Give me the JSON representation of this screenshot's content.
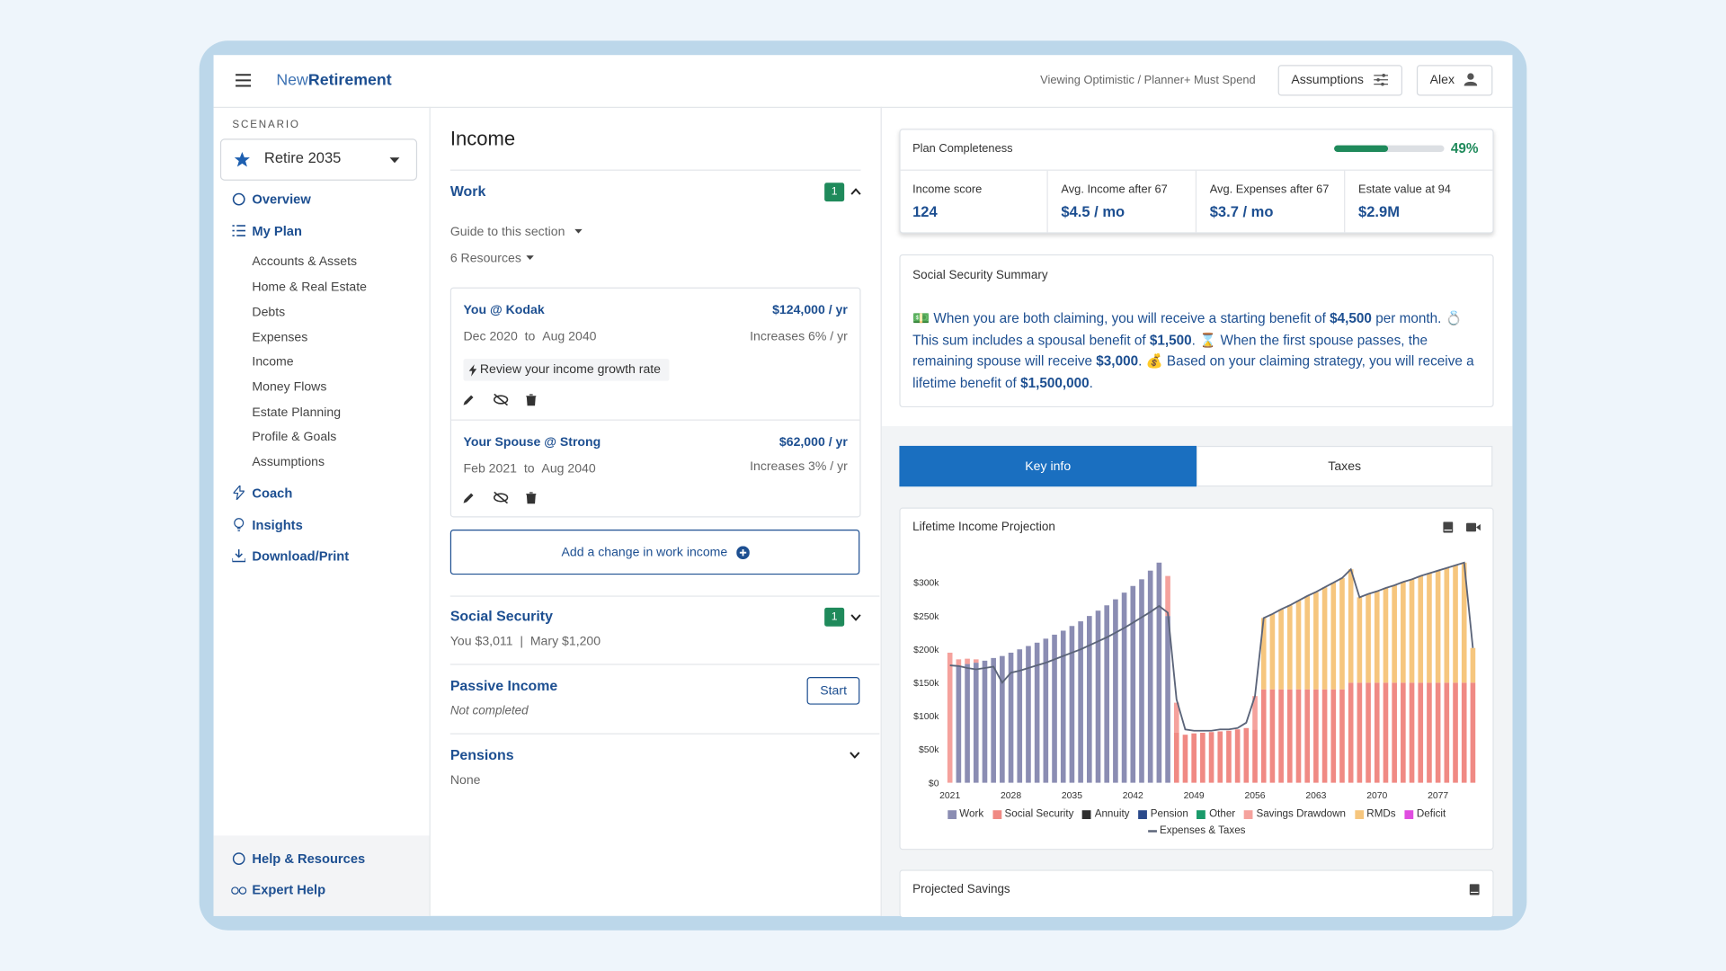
{
  "header": {
    "logo_light": "New",
    "logo_bold": "Retirement",
    "viewing": "Viewing Optimistic / Planner+ Must Spend",
    "assumptions": "Assumptions",
    "user": "Alex"
  },
  "sidebar": {
    "scenario_label": "SCENARIO",
    "scenario": "Retire 2035",
    "nav": [
      "Overview",
      "My Plan"
    ],
    "plan_items": [
      "Accounts & Assets",
      "Home & Real Estate",
      "Debts",
      "Expenses",
      "Income",
      "Money Flows",
      "Estate Planning",
      "Profile & Goals",
      "Assumptions"
    ],
    "nav2": [
      "Coach",
      "Insights",
      "Download/Print"
    ],
    "footer": [
      "Help & Resources",
      "Expert Help"
    ]
  },
  "income": {
    "title": "Income",
    "work": {
      "title": "Work",
      "count": "1",
      "guide": "Guide to this section",
      "resources": "6 Resources",
      "jobs": [
        {
          "name": "You @ Kodak",
          "amount": "$124,000 / yr",
          "start": "Dec 2020",
          "to": "to",
          "end": "Aug 2040",
          "growth": "Increases 6% / yr",
          "tip": "Review your income growth rate"
        },
        {
          "name": "Your Spouse @ Strong",
          "amount": "$62,000 / yr",
          "start": "Feb 2021",
          "to": "to",
          "end": "Aug 2040",
          "growth": "Increases 3% / yr"
        }
      ],
      "add": "Add a change in work income"
    },
    "social_security": {
      "title": "Social Security",
      "count": "1",
      "detail": "You $3,011  |  Mary $1,200"
    },
    "passive": {
      "title": "Passive Income",
      "action": "Start",
      "status": "Not completed"
    },
    "pensions": {
      "title": "Pensions",
      "status": "None"
    }
  },
  "summary": {
    "completeness": {
      "label": "Plan Completeness",
      "value": 49,
      "value_label": "49%"
    },
    "metrics": [
      {
        "label": "Income score",
        "value": "124"
      },
      {
        "label": "Avg. Income after 67",
        "value": "$4.5 / mo"
      },
      {
        "label": "Avg. Expenses after 67",
        "value": "$3.7 / mo"
      },
      {
        "label": "Estate value at 94",
        "value": "$2.9M"
      }
    ]
  },
  "social_security_summary": {
    "title": "Social Security Summary",
    "parts": [
      "💵 When you are both claiming, you will receive a starting benefit of ",
      "$4,500",
      " per month. 💍 This sum includes a spousal benefit of ",
      "$1,500",
      ". ⌛ When the first spouse passes, the remaining spouse will receive ",
      "$3,000",
      ". 💰 Based on your claiming strategy, you will receive a lifetime benefit of ",
      "$1,500,000",
      "."
    ]
  },
  "tabs": [
    "Key info",
    "Taxes"
  ],
  "chart_data": {
    "type": "bar",
    "stacked": true,
    "title": "Lifetime Income Projection",
    "grid": false,
    "x": [
      2021,
      2022,
      2023,
      2024,
      2025,
      2026,
      2027,
      2028,
      2029,
      2030,
      2031,
      2032,
      2033,
      2034,
      2035,
      2036,
      2037,
      2038,
      2039,
      2040,
      2041,
      2042,
      2043,
      2044,
      2045,
      2046,
      2047,
      2048,
      2049,
      2050,
      2051,
      2052,
      2053,
      2054,
      2055,
      2056,
      2057,
      2058,
      2059,
      2060,
      2061,
      2062,
      2063,
      2064,
      2065,
      2066,
      2067,
      2068,
      2069,
      2070,
      2071,
      2072,
      2073,
      2074,
      2075,
      2076,
      2077,
      2078,
      2079,
      2080,
      2081
    ],
    "xlim": [
      2020.5,
      2081.5
    ],
    "xticks": [
      2021,
      2028,
      2035,
      2042,
      2049,
      2056,
      2063,
      2070,
      2077
    ],
    "ylim": [
      0,
      340000
    ],
    "yticks": [
      {
        "value": 0,
        "label": "$0"
      },
      {
        "value": 50000,
        "label": "$50k"
      },
      {
        "value": 100000,
        "label": "$100k"
      },
      {
        "value": 150000,
        "label": "$150k"
      },
      {
        "value": 200000,
        "label": "$200k"
      },
      {
        "value": 250000,
        "label": "$250k"
      },
      {
        "value": 300000,
        "label": "$300k"
      }
    ],
    "series": [
      {
        "name": "Work",
        "color": "#8b8db3",
        "values": [
          0,
          175000,
          178000,
          180000,
          183000,
          187000,
          190000,
          195000,
          200000,
          205000,
          210000,
          216000,
          222000,
          228000,
          235000,
          242000,
          250000,
          258000,
          266000,
          275000,
          285000,
          295000,
          305000,
          318000,
          330000,
          250000,
          0,
          0,
          0,
          0,
          0,
          0,
          0,
          0,
          0,
          0,
          0,
          0,
          0,
          0,
          0,
          0,
          0,
          0,
          0,
          0,
          0,
          0,
          0,
          0,
          0,
          0,
          0,
          0,
          0,
          0,
          0,
          0,
          0,
          0,
          0
        ]
      },
      {
        "name": "Social Security",
        "color": "#f08a84",
        "values": [
          0,
          0,
          0,
          0,
          0,
          0,
          0,
          0,
          0,
          0,
          0,
          0,
          0,
          0,
          0,
          0,
          0,
          0,
          0,
          0,
          0,
          0,
          0,
          0,
          0,
          0,
          75000,
          72000,
          74000,
          75000,
          76000,
          77000,
          78000,
          80000,
          82000,
          80000,
          140000,
          140000,
          140000,
          140000,
          140000,
          140000,
          140000,
          140000,
          140000,
          140000,
          150000,
          150000,
          150000,
          150000,
          150000,
          150000,
          150000,
          150000,
          150000,
          150000,
          150000,
          150000,
          150000,
          150000,
          150000
        ]
      },
      {
        "name": "Annuity",
        "color": "#2e2e2e",
        "values": [
          0,
          0,
          0,
          0,
          0,
          0,
          0,
          0,
          0,
          0,
          0,
          0,
          0,
          0,
          0,
          0,
          0,
          0,
          0,
          0,
          0,
          0,
          0,
          0,
          0,
          0,
          0,
          0,
          0,
          0,
          0,
          0,
          0,
          0,
          0,
          0,
          0,
          0,
          0,
          0,
          0,
          0,
          0,
          0,
          0,
          0,
          0,
          0,
          0,
          0,
          0,
          0,
          0,
          0,
          0,
          0,
          0,
          0,
          0,
          0,
          0
        ]
      },
      {
        "name": "Pension",
        "color": "#2b4a8b",
        "values": [
          0,
          0,
          0,
          0,
          0,
          0,
          0,
          0,
          0,
          0,
          0,
          0,
          0,
          0,
          0,
          0,
          0,
          0,
          0,
          0,
          0,
          0,
          0,
          0,
          0,
          0,
          0,
          0,
          0,
          0,
          0,
          0,
          0,
          0,
          0,
          0,
          0,
          0,
          0,
          0,
          0,
          0,
          0,
          0,
          0,
          0,
          0,
          0,
          0,
          0,
          0,
          0,
          0,
          0,
          0,
          0,
          0,
          0,
          0,
          0,
          0
        ]
      },
      {
        "name": "Other",
        "color": "#1a9a6a",
        "values": [
          0,
          0,
          0,
          0,
          0,
          0,
          0,
          0,
          0,
          0,
          0,
          0,
          0,
          0,
          0,
          0,
          0,
          0,
          0,
          0,
          0,
          0,
          0,
          0,
          0,
          0,
          0,
          0,
          0,
          0,
          0,
          0,
          0,
          0,
          0,
          0,
          0,
          0,
          0,
          0,
          0,
          0,
          0,
          0,
          0,
          0,
          0,
          0,
          0,
          0,
          0,
          0,
          0,
          0,
          0,
          0,
          0,
          0,
          0,
          0,
          0
        ]
      },
      {
        "name": "Savings Drawdown",
        "color": "#f5a29d",
        "values": [
          195000,
          10000,
          8000,
          5000,
          0,
          0,
          0,
          0,
          0,
          0,
          0,
          0,
          0,
          0,
          0,
          0,
          0,
          0,
          0,
          0,
          0,
          0,
          0,
          0,
          0,
          60000,
          45000,
          0,
          0,
          0,
          0,
          0,
          0,
          0,
          0,
          50000,
          0,
          0,
          0,
          0,
          0,
          0,
          0,
          0,
          0,
          0,
          0,
          0,
          0,
          0,
          0,
          0,
          0,
          0,
          0,
          0,
          0,
          0,
          0,
          0,
          0
        ]
      },
      {
        "name": "RMDs",
        "color": "#f6c67e",
        "values": [
          0,
          0,
          0,
          0,
          0,
          0,
          0,
          0,
          0,
          0,
          0,
          0,
          0,
          0,
          0,
          0,
          0,
          0,
          0,
          0,
          0,
          0,
          0,
          0,
          0,
          0,
          0,
          0,
          0,
          0,
          0,
          0,
          0,
          0,
          0,
          0,
          107000,
          113000,
          120000,
          126000,
          133000,
          140000,
          146000,
          153000,
          160000,
          167000,
          170000,
          128000,
          133000,
          137000,
          142000,
          146000,
          151000,
          155000,
          160000,
          164000,
          168000,
          172000,
          176000,
          180000,
          52000
        ]
      },
      {
        "name": "Deficit",
        "color": "#e04de0",
        "values": [
          0,
          0,
          0,
          0,
          0,
          0,
          0,
          0,
          0,
          0,
          0,
          0,
          0,
          0,
          0,
          0,
          0,
          0,
          0,
          0,
          0,
          0,
          0,
          0,
          0,
          0,
          0,
          0,
          0,
          0,
          0,
          0,
          0,
          0,
          0,
          0,
          0,
          0,
          0,
          0,
          0,
          0,
          0,
          0,
          0,
          0,
          0,
          0,
          0,
          0,
          0,
          0,
          0,
          0,
          0,
          0,
          0,
          0,
          0,
          0,
          0
        ]
      },
      {
        "name": "Expenses & Taxes",
        "type": "line",
        "color": "#5b6479",
        "values": [
          176000,
          175000,
          172000,
          170000,
          172000,
          174000,
          150000,
          165000,
          168000,
          172000,
          176000,
          180000,
          185000,
          190000,
          195000,
          200000,
          206000,
          212000,
          218000,
          225000,
          232000,
          240000,
          248000,
          256000,
          265000,
          255000,
          125000,
          80000,
          78000,
          78000,
          78000,
          80000,
          80000,
          82000,
          90000,
          130000,
          247000,
          253000,
          260000,
          266000,
          273000,
          280000,
          286000,
          293000,
          300000,
          307000,
          320000,
          278000,
          283000,
          287000,
          292000,
          296000,
          301000,
          305000,
          310000,
          314000,
          318000,
          322000,
          326000,
          330000,
          202000
        ]
      }
    ]
  },
  "projected_savings": {
    "title": "Projected Savings"
  }
}
